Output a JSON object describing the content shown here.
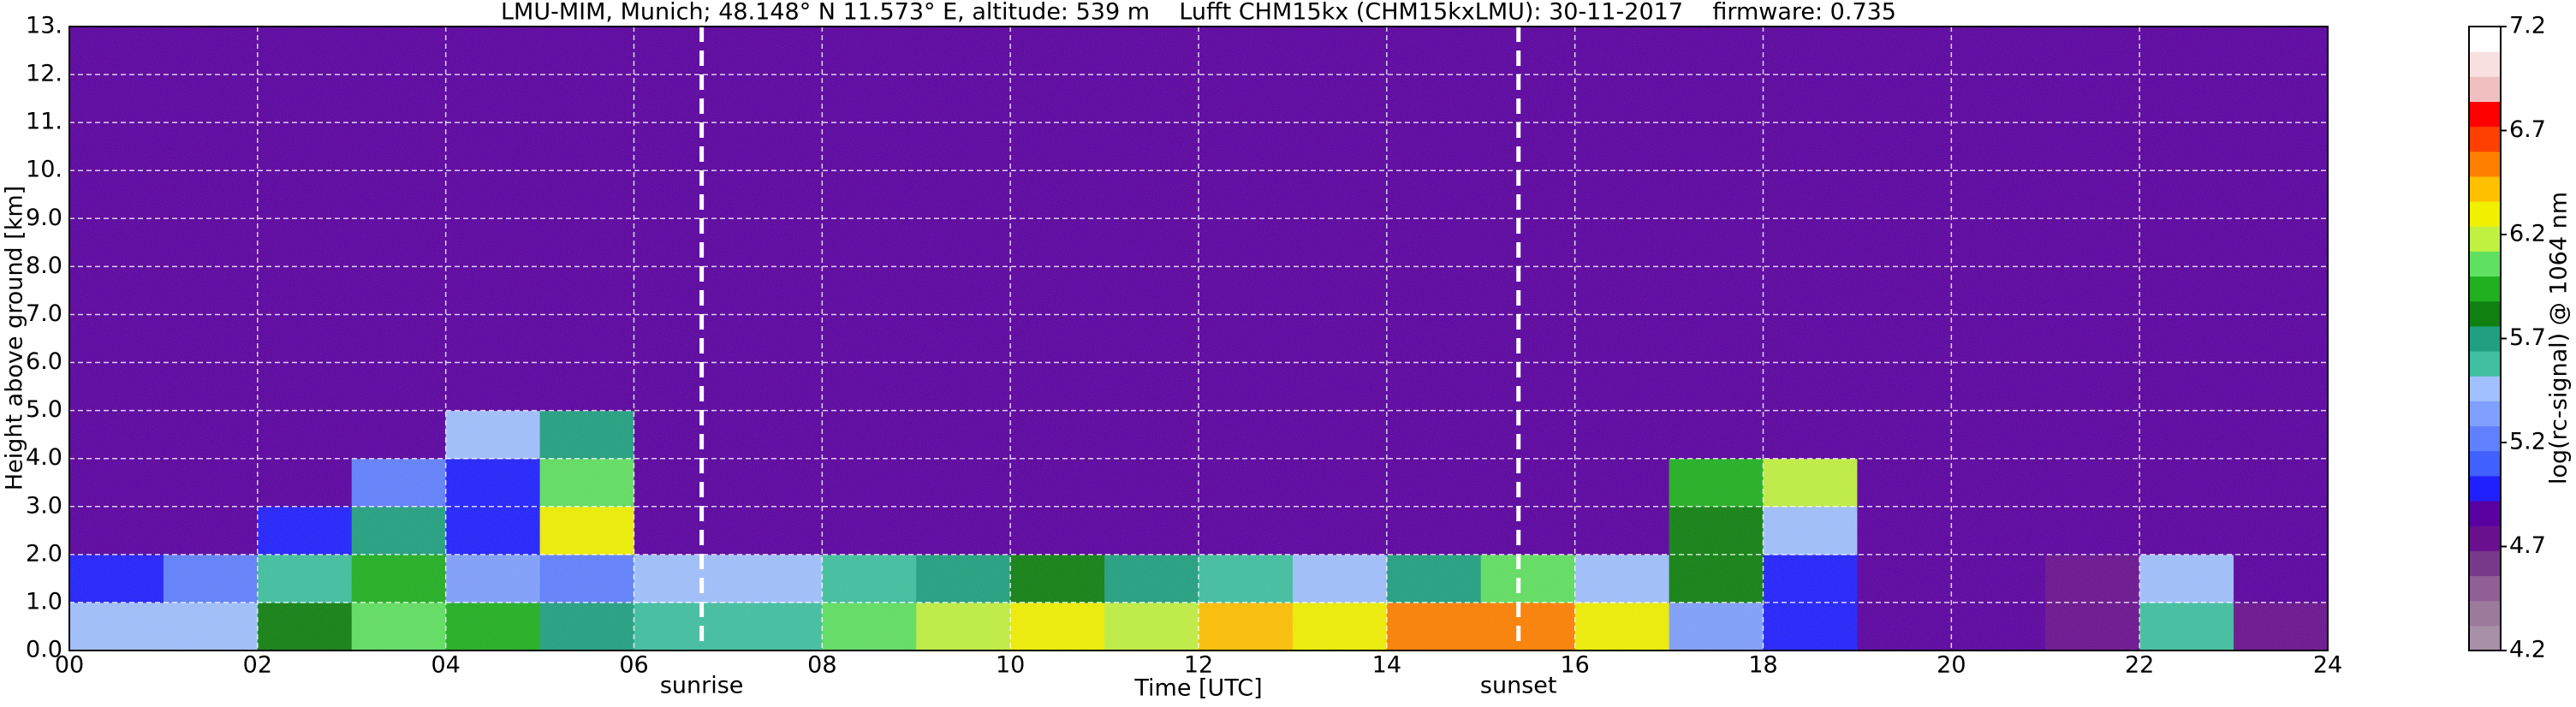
{
  "chart_data": {
    "type": "heatmap",
    "title": "LMU-MIM, Munich; 48.148° N 11.573° E, altitude: 539 m    Lufft CHM15kx (CHM15kxLMU): 30-11-2017    firmware: 0.735",
    "xlabel": "Time [UTC]",
    "ylabel": "Height above ground [km]",
    "colorbar_label": "log(rc-signal) @ 1064 nm",
    "xlim": [
      0,
      24
    ],
    "xticks": [
      {
        "value": 0,
        "label": "00"
      },
      {
        "value": 2,
        "label": "02"
      },
      {
        "value": 4,
        "label": "04"
      },
      {
        "value": 6,
        "label": "06"
      },
      {
        "value": 8,
        "label": "08"
      },
      {
        "value": 10,
        "label": "10"
      },
      {
        "value": 12,
        "label": "12"
      },
      {
        "value": 14,
        "label": "14"
      },
      {
        "value": 16,
        "label": "16"
      },
      {
        "value": 18,
        "label": "18"
      },
      {
        "value": 20,
        "label": "20"
      },
      {
        "value": 22,
        "label": "22"
      },
      {
        "value": 24,
        "label": "24"
      }
    ],
    "ylim": [
      0,
      13
    ],
    "yticks": [
      {
        "value": 0,
        "label": "0.0"
      },
      {
        "value": 1,
        "label": "1.0"
      },
      {
        "value": 2,
        "label": "2.0"
      },
      {
        "value": 3,
        "label": "3.0"
      },
      {
        "value": 4,
        "label": "4.0"
      },
      {
        "value": 5,
        "label": "5.0"
      },
      {
        "value": 6,
        "label": "6.0"
      },
      {
        "value": 7,
        "label": "7.0"
      },
      {
        "value": 8,
        "label": "8.0"
      },
      {
        "value": 9,
        "label": "9.0"
      },
      {
        "value": 10,
        "label": "10."
      },
      {
        "value": 11,
        "label": "11."
      },
      {
        "value": 12,
        "label": "12."
      },
      {
        "value": 13,
        "label": "13."
      }
    ],
    "clim": [
      4.2,
      7.2
    ],
    "cticks": [
      4.2,
      4.7,
      5.2,
      5.7,
      6.2,
      6.7,
      7.2
    ],
    "grid": true,
    "colormap": [
      "#a890a8",
      "#9c7a9c",
      "#8f5f95",
      "#7a3a8c",
      "#6a108f",
      "#5a00a0",
      "#2020ff",
      "#4060ff",
      "#6080ff",
      "#80a0ff",
      "#a0c0ff",
      "#40c0a0",
      "#20a080",
      "#108010",
      "#20b020",
      "#60e060",
      "#c0f040",
      "#f0f000",
      "#ffc000",
      "#ff8000",
      "#ff4000",
      "#ff0000",
      "#f0c0c0",
      "#f8e0e0",
      "#ffffff"
    ],
    "annotations": [
      {
        "text": "sunrise",
        "x": 6.72
      },
      {
        "text": "sunset",
        "x": 15.4
      }
    ],
    "xbins": [
      0,
      1,
      2,
      3,
      4,
      5,
      6,
      7,
      8,
      9,
      10,
      11,
      12,
      13,
      14,
      15,
      16,
      17,
      18,
      19,
      20,
      21,
      22,
      23,
      24
    ],
    "ybins": [
      0,
      1,
      2,
      3,
      4,
      5,
      6,
      7,
      8,
      9,
      10,
      11,
      12,
      13
    ],
    "z": [
      [
        5.4,
        5.5,
        5.8,
        6.0,
        5.9,
        5.7,
        5.6,
        5.6,
        6.0,
        6.2,
        6.3,
        6.2,
        6.4,
        6.3,
        6.5,
        6.6,
        6.3,
        5.3,
        5.0,
        4.9,
        4.9,
        4.8,
        5.6,
        4.8
      ],
      [
        5.0,
        5.2,
        5.6,
        5.9,
        5.3,
        5.2,
        5.4,
        5.5,
        5.6,
        5.7,
        5.8,
        5.7,
        5.6,
        5.5,
        5.7,
        6.0,
        5.5,
        5.8,
        5.0,
        4.9,
        4.9,
        4.8,
        5.4,
        4.9
      ],
      [
        4.9,
        4.9,
        5.0,
        5.7,
        5.0,
        6.3,
        4.9,
        4.9,
        4.9,
        4.9,
        4.9,
        4.9,
        4.9,
        4.9,
        4.9,
        4.9,
        4.9,
        5.8,
        5.5,
        4.9,
        4.9,
        4.9,
        4.9,
        4.9
      ],
      [
        4.9,
        4.9,
        4.9,
        5.2,
        5.0,
        6.0,
        4.9,
        4.9,
        4.9,
        4.9,
        4.9,
        4.9,
        4.9,
        4.9,
        4.9,
        4.9,
        4.9,
        5.9,
        6.2,
        4.9,
        4.9,
        4.9,
        4.9,
        4.9
      ],
      [
        4.9,
        4.9,
        4.9,
        4.9,
        5.4,
        5.7,
        4.9,
        4.9,
        4.9,
        4.9,
        4.9,
        4.9,
        4.9,
        4.9,
        4.9,
        4.9,
        4.9,
        4.9,
        4.9,
        4.9,
        4.9,
        4.9,
        4.9,
        4.9
      ],
      [
        4.9,
        4.9,
        4.9,
        4.9,
        4.9,
        4.9,
        4.9,
        4.9,
        4.9,
        4.9,
        4.9,
        4.9,
        4.9,
        4.9,
        4.9,
        4.9,
        4.9,
        4.9,
        4.9,
        4.9,
        4.9,
        4.9,
        4.9,
        4.9
      ],
      [
        4.9,
        4.9,
        4.9,
        4.9,
        4.9,
        4.9,
        4.9,
        4.9,
        4.9,
        4.9,
        4.9,
        4.9,
        4.9,
        4.9,
        4.9,
        4.9,
        4.9,
        4.9,
        4.9,
        4.9,
        4.9,
        4.9,
        4.9,
        4.9
      ],
      [
        4.9,
        4.9,
        4.9,
        4.9,
        4.9,
        4.9,
        4.9,
        4.9,
        4.9,
        4.9,
        4.9,
        4.9,
        4.9,
        4.9,
        4.9,
        4.9,
        4.9,
        4.9,
        4.9,
        4.9,
        4.9,
        4.9,
        4.9,
        4.9
      ],
      [
        4.9,
        4.9,
        4.9,
        4.9,
        4.9,
        4.9,
        4.9,
        4.9,
        4.9,
        4.9,
        4.9,
        4.9,
        4.9,
        4.9,
        4.9,
        4.9,
        4.9,
        4.9,
        4.9,
        4.9,
        4.9,
        4.9,
        4.9,
        4.9
      ],
      [
        4.9,
        4.9,
        4.9,
        4.9,
        4.9,
        4.9,
        4.9,
        4.9,
        4.9,
        4.9,
        4.9,
        4.9,
        4.9,
        4.9,
        4.9,
        4.9,
        4.9,
        4.9,
        4.9,
        4.9,
        4.9,
        4.9,
        4.9,
        4.9
      ],
      [
        4.9,
        4.9,
        4.9,
        4.9,
        4.9,
        4.9,
        4.9,
        4.9,
        4.9,
        4.9,
        4.9,
        4.9,
        4.9,
        4.9,
        4.9,
        4.9,
        4.9,
        4.9,
        4.9,
        4.9,
        4.9,
        4.9,
        4.9,
        4.9
      ],
      [
        4.9,
        4.9,
        4.9,
        4.9,
        4.9,
        4.9,
        4.9,
        4.9,
        4.9,
        4.9,
        4.9,
        4.9,
        4.9,
        4.9,
        4.9,
        4.9,
        4.9,
        4.9,
        4.9,
        4.9,
        4.9,
        4.9,
        4.9,
        4.9
      ],
      [
        4.9,
        4.9,
        4.9,
        4.9,
        4.9,
        4.9,
        4.9,
        4.9,
        4.9,
        4.9,
        4.9,
        4.9,
        4.9,
        4.9,
        4.9,
        4.9,
        4.9,
        4.9,
        4.9,
        4.9,
        4.9,
        4.9,
        4.9,
        4.9
      ]
    ]
  }
}
